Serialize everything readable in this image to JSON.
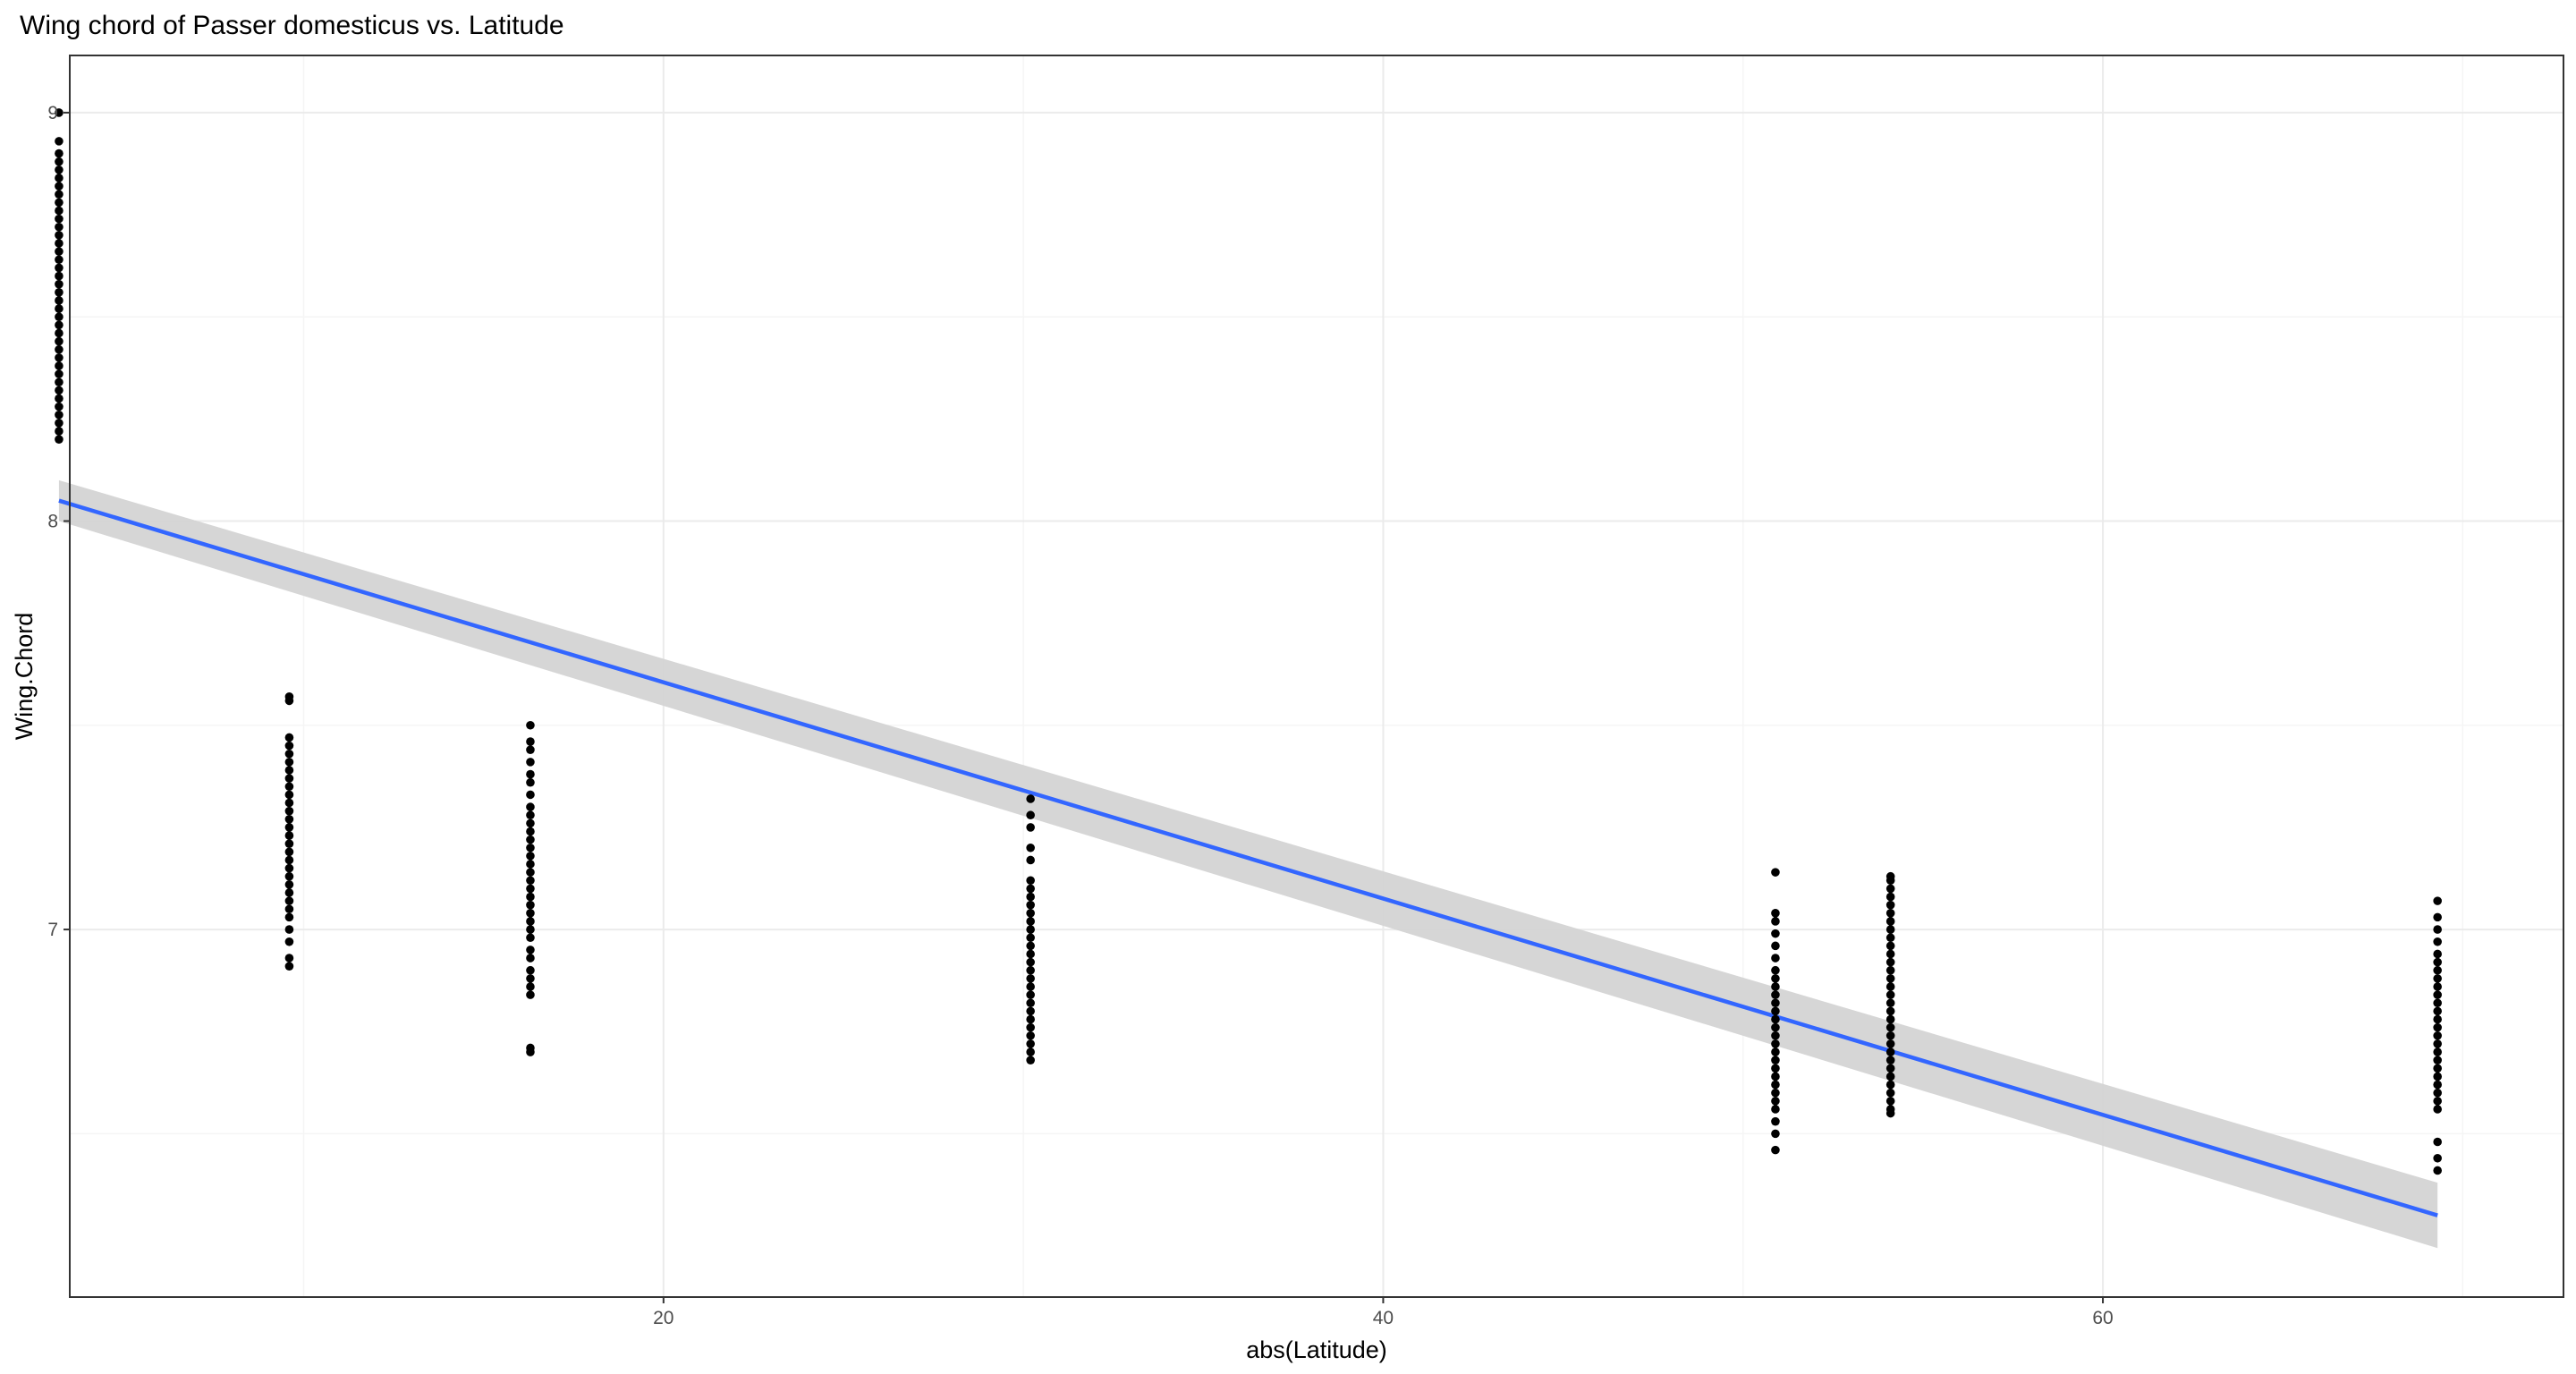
{
  "chart_data": {
    "type": "scatter",
    "title": "Wing chord of Passer domesticus vs. Latitude",
    "xlabel": "abs(Latitude)",
    "ylabel": "Wing.Chord",
    "xlim": [
      3.5,
      72.8
    ],
    "ylim": [
      6.1,
      9.14
    ],
    "x_ticks": [
      20,
      40,
      60
    ],
    "y_ticks": [
      7,
      8,
      9
    ],
    "grid": true,
    "legend": "none",
    "colors": {
      "points": "#000000",
      "fit_line": "#3366ff",
      "confidence_band": "#d4d4d4",
      "major_grid": "#ebebeb",
      "minor_grid": "#f5f5f5",
      "panel_border": "#333333",
      "tick_text": "#4d4d4d"
    },
    "series": [
      {
        "type": "scatter",
        "groups": [
          {
            "x": 3.2,
            "y": [
              8.2,
              8.22,
              8.24,
              8.26,
              8.28,
              8.3,
              8.32,
              8.34,
              8.36,
              8.38,
              8.4,
              8.42,
              8.44,
              8.46,
              8.48,
              8.5,
              8.52,
              8.54,
              8.56,
              8.58,
              8.6,
              8.62,
              8.64,
              8.66,
              8.68,
              8.7,
              8.72,
              8.74,
              8.76,
              8.78,
              8.8,
              8.82,
              8.84,
              8.86,
              8.88,
              8.9,
              8.93,
              9.0
            ]
          },
          {
            "x": 9.6,
            "y": [
              6.91,
              6.93,
              6.97,
              7.0,
              7.03,
              7.05,
              7.07,
              7.09,
              7.11,
              7.13,
              7.15,
              7.17,
              7.19,
              7.21,
              7.23,
              7.25,
              7.27,
              7.29,
              7.31,
              7.33,
              7.35,
              7.37,
              7.39,
              7.41,
              7.43,
              7.45,
              7.47,
              7.56,
              7.57
            ]
          },
          {
            "x": 16.3,
            "y": [
              6.7,
              6.71,
              6.84,
              6.86,
              6.88,
              6.9,
              6.93,
              6.95,
              6.98,
              7.0,
              7.02,
              7.04,
              7.06,
              7.08,
              7.1,
              7.12,
              7.14,
              7.16,
              7.18,
              7.2,
              7.22,
              7.24,
              7.26,
              7.28,
              7.3,
              7.33,
              7.36,
              7.38,
              7.41,
              7.44,
              7.46,
              7.5
            ]
          },
          {
            "x": 30.2,
            "y": [
              6.68,
              6.7,
              6.72,
              6.74,
              6.76,
              6.78,
              6.8,
              6.82,
              6.84,
              6.86,
              6.88,
              6.9,
              6.92,
              6.94,
              6.96,
              6.98,
              7.0,
              7.02,
              7.04,
              7.06,
              7.08,
              7.1,
              7.12,
              7.17,
              7.2,
              7.25,
              7.28,
              7.32
            ]
          },
          {
            "x": 50.9,
            "y": [
              6.46,
              6.5,
              6.53,
              6.56,
              6.58,
              6.6,
              6.62,
              6.64,
              6.66,
              6.68,
              6.7,
              6.72,
              6.74,
              6.76,
              6.78,
              6.8,
              6.82,
              6.84,
              6.86,
              6.88,
              6.9,
              6.93,
              6.96,
              6.99,
              7.02,
              7.04,
              7.14
            ]
          },
          {
            "x": 54.1,
            "y": [
              6.55,
              6.56,
              6.58,
              6.6,
              6.62,
              6.64,
              6.66,
              6.68,
              6.7,
              6.72,
              6.74,
              6.76,
              6.78,
              6.8,
              6.82,
              6.84,
              6.86,
              6.88,
              6.9,
              6.92,
              6.94,
              6.96,
              6.98,
              7.0,
              7.02,
              7.04,
              7.06,
              7.08,
              7.1,
              7.12,
              7.13
            ]
          },
          {
            "x": 69.3,
            "y": [
              6.41,
              6.44,
              6.48,
              6.56,
              6.58,
              6.6,
              6.62,
              6.64,
              6.66,
              6.68,
              6.7,
              6.72,
              6.74,
              6.76,
              6.78,
              6.8,
              6.82,
              6.84,
              6.86,
              6.88,
              6.9,
              6.92,
              6.94,
              6.97,
              7.0,
              7.03,
              7.07
            ]
          }
        ]
      },
      {
        "type": "line",
        "method": "linear fit with confidence band",
        "x": [
          3.2,
          69.3
        ],
        "y": [
          8.05,
          6.3
        ],
        "band_lower": [
          8.0,
          6.22
        ],
        "band_upper": [
          8.1,
          6.38
        ]
      }
    ]
  }
}
